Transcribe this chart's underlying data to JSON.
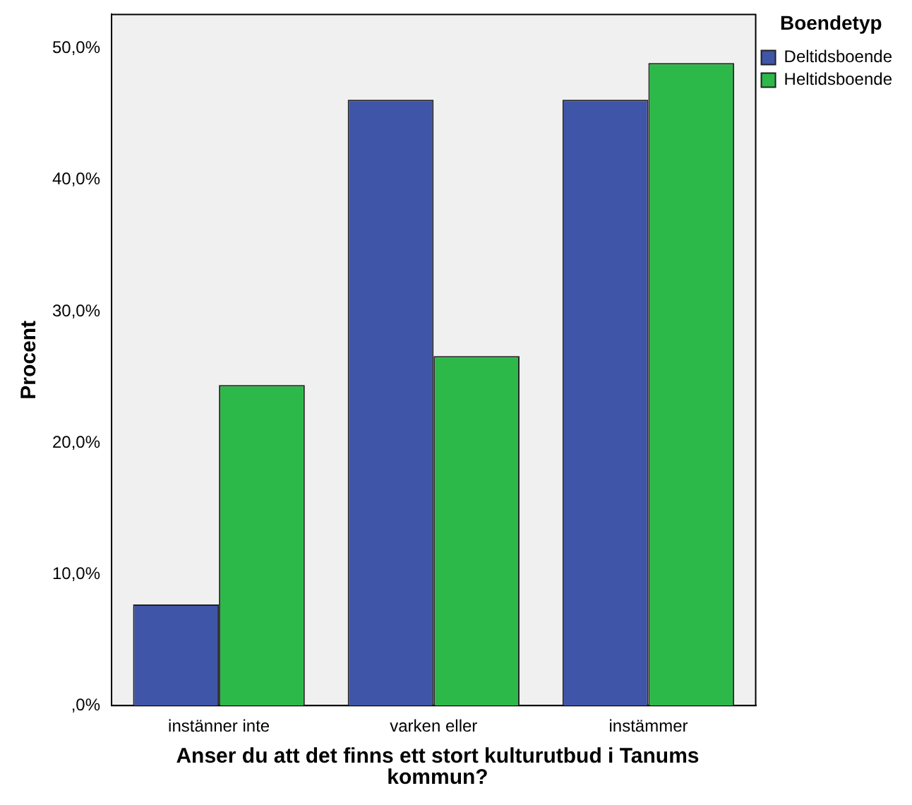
{
  "chart_data": {
    "type": "bar",
    "xlabel": "Anser du att det finns ett stort kulturutbud i Tanums kommun?",
    "ylabel": "Procent",
    "legend_title": "Boendetyp",
    "legend": "right",
    "categories": [
      "instänner inte",
      "varken eller",
      "instämmer"
    ],
    "series": [
      {
        "name": "Deltidsboende",
        "color": "#3f55a8",
        "values": [
          7.7,
          46.1,
          46.1
        ]
      },
      {
        "name": "Heltidsboende",
        "color": "#2db84a",
        "values": [
          24.4,
          26.6,
          48.9
        ]
      }
    ],
    "ylim": [
      0,
      52.6
    ],
    "yticks": [
      {
        "value": 0,
        "label": ",0%"
      },
      {
        "value": 10,
        "label": "10,0%"
      },
      {
        "value": 20,
        "label": "20,0%"
      },
      {
        "value": 30,
        "label": "30,0%"
      },
      {
        "value": 40,
        "label": "40,0%"
      },
      {
        "value": 50,
        "label": "50,0%"
      }
    ],
    "grid": false
  }
}
